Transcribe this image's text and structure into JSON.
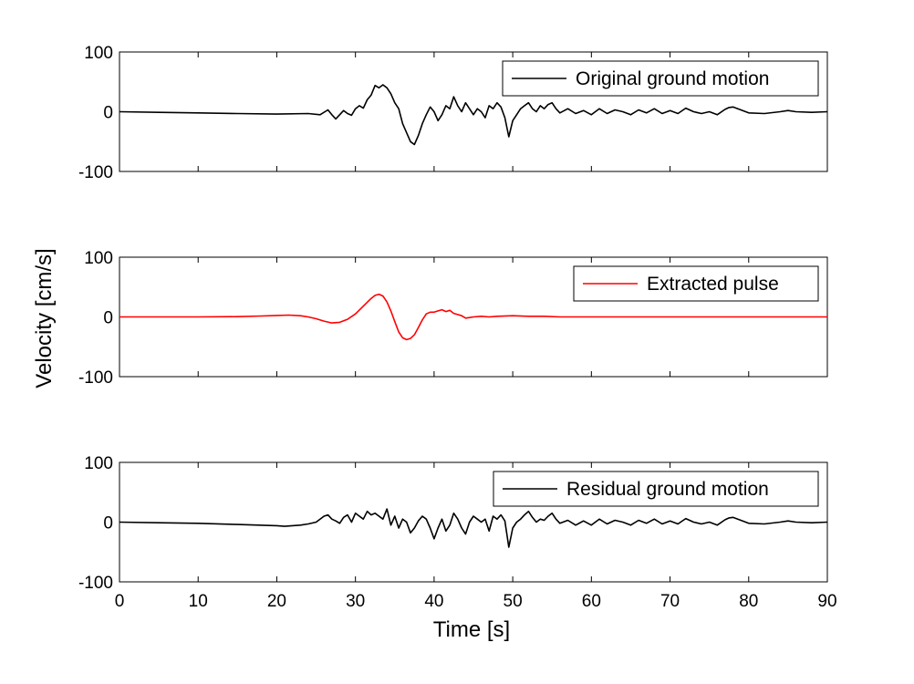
{
  "figure": {
    "ylabel": "Velocity [cm/s]",
    "xlabel": "Time [s]"
  },
  "colors": {
    "original": "#000000",
    "pulse": "#ff0000",
    "residual": "#000000"
  },
  "chart_data": [
    {
      "type": "line",
      "title": "",
      "xlabel": "",
      "ylabel": "",
      "xlim": [
        0,
        90
      ],
      "ylim": [
        -100,
        100
      ],
      "yticks": [
        -100,
        0,
        100
      ],
      "xticks": [
        0,
        10,
        20,
        30,
        40,
        50,
        60,
        70,
        80,
        90
      ],
      "x_tick_labels_shown": false,
      "legend_position": "top-right",
      "grid": false,
      "series": [
        {
          "name": "Original ground motion",
          "color": "#000000",
          "x": [
            0,
            5,
            10,
            15,
            20,
            24,
            25.5,
            26.5,
            27,
            27.5,
            28,
            28.5,
            29,
            29.5,
            30,
            30.5,
            31,
            31.5,
            32,
            32.5,
            33,
            33.5,
            34,
            34.5,
            35,
            35.5,
            36,
            36.5,
            37,
            37.5,
            38,
            38.5,
            39,
            39.5,
            40,
            40.5,
            41,
            41.5,
            42,
            42.5,
            43,
            43.5,
            44,
            44.5,
            45,
            45.5,
            46,
            46.5,
            47,
            47.5,
            48,
            48.5,
            49,
            49.5,
            50,
            50.5,
            51,
            51.5,
            52,
            52.5,
            53,
            53.5,
            54,
            54.5,
            55,
            55.5,
            56,
            57,
            58,
            59,
            60,
            61,
            62,
            63,
            64,
            65,
            66,
            67,
            68,
            69,
            70,
            71,
            72,
            73,
            74,
            75,
            76,
            77,
            77.5,
            78,
            79,
            80,
            82,
            84,
            85,
            86,
            88,
            90
          ],
          "y": [
            0,
            -1,
            -2,
            -3,
            -4,
            -3,
            -5,
            3,
            -5,
            -12,
            -5,
            2,
            -3,
            -6,
            5,
            10,
            6,
            20,
            28,
            44,
            40,
            45,
            40,
            30,
            15,
            5,
            -20,
            -35,
            -50,
            -55,
            -40,
            -20,
            -5,
            8,
            0,
            -15,
            -5,
            10,
            5,
            25,
            10,
            0,
            15,
            5,
            -5,
            5,
            0,
            -10,
            10,
            5,
            15,
            8,
            -10,
            -42,
            -15,
            -5,
            5,
            10,
            15,
            5,
            0,
            10,
            5,
            12,
            15,
            5,
            -2,
            5,
            -3,
            2,
            -5,
            5,
            -3,
            3,
            0,
            -5,
            3,
            -2,
            5,
            -3,
            2,
            -3,
            6,
            0,
            -3,
            0,
            -5,
            4,
            7,
            8,
            3,
            -2,
            -3,
            0,
            2,
            0,
            -1,
            0
          ]
        }
      ]
    },
    {
      "type": "line",
      "title": "",
      "xlabel": "",
      "ylabel": "",
      "xlim": [
        0,
        90
      ],
      "ylim": [
        -100,
        100
      ],
      "yticks": [
        -100,
        0,
        100
      ],
      "xticks": [
        0,
        10,
        20,
        30,
        40,
        50,
        60,
        70,
        80,
        90
      ],
      "x_tick_labels_shown": false,
      "legend_position": "top-right",
      "grid": false,
      "series": [
        {
          "name": "Extracted pulse",
          "color": "#ff0000",
          "x": [
            0,
            10,
            15,
            18,
            20,
            21.5,
            23,
            24,
            25,
            26,
            27,
            28,
            29,
            30,
            31,
            32,
            32.5,
            33,
            33.5,
            34,
            34.5,
            35,
            35.5,
            36,
            36.5,
            37,
            37.5,
            38,
            38.5,
            39,
            39.5,
            40,
            40.5,
            41,
            41.5,
            42,
            42.5,
            43,
            43.5,
            44,
            44.5,
            45,
            46,
            47,
            48,
            50,
            52,
            54,
            56,
            60,
            70,
            80,
            90
          ],
          "y": [
            0,
            0,
            0.5,
            1.5,
            2.5,
            3,
            2,
            0,
            -3,
            -7,
            -10,
            -9,
            -4,
            5,
            18,
            31,
            36,
            38,
            35,
            25,
            10,
            -8,
            -25,
            -35,
            -38,
            -36,
            -30,
            -18,
            -5,
            5,
            8,
            8,
            10,
            12,
            9,
            11,
            6,
            4,
            2,
            -2,
            -1,
            0,
            1,
            0,
            1,
            2,
            1,
            1,
            0,
            0,
            0,
            0,
            0
          ]
        }
      ]
    },
    {
      "type": "line",
      "title": "",
      "xlabel": "Time [s]",
      "ylabel": "",
      "xlim": [
        0,
        90
      ],
      "ylim": [
        -100,
        100
      ],
      "yticks": [
        -100,
        0,
        100
      ],
      "xticks": [
        0,
        10,
        20,
        30,
        40,
        50,
        60,
        70,
        80,
        90
      ],
      "x_tick_labels_shown": true,
      "legend_position": "top-right",
      "grid": false,
      "series": [
        {
          "name": "Residual ground motion",
          "color": "#000000",
          "x": [
            0,
            5,
            10,
            15,
            20,
            21,
            22,
            23,
            24,
            25,
            26,
            26.5,
            27,
            27.5,
            28,
            28.5,
            29,
            29.5,
            30,
            30.5,
            31,
            31.5,
            32,
            32.5,
            33,
            33.5,
            34,
            34.5,
            35,
            35.5,
            36,
            36.5,
            37,
            37.5,
            38,
            38.5,
            39,
            39.5,
            40,
            40.5,
            41,
            41.5,
            42,
            42.5,
            43,
            43.5,
            44,
            44.5,
            45,
            45.5,
            46,
            46.5,
            47,
            47.5,
            48,
            48.5,
            49,
            49.5,
            50,
            50.5,
            51,
            51.5,
            52,
            52.5,
            53,
            53.5,
            54,
            54.5,
            55,
            55.5,
            56,
            57,
            58,
            59,
            60,
            61,
            62,
            63,
            64,
            65,
            66,
            67,
            68,
            69,
            70,
            71,
            72,
            73,
            74,
            75,
            76,
            77,
            77.5,
            78,
            79,
            80,
            82,
            84,
            85,
            86,
            88,
            90
          ],
          "y": [
            0,
            -1,
            -2,
            -4,
            -6,
            -7,
            -6,
            -5,
            -3,
            0,
            10,
            12,
            5,
            2,
            -2,
            8,
            12,
            0,
            15,
            10,
            5,
            18,
            12,
            15,
            10,
            5,
            22,
            -5,
            10,
            -10,
            5,
            0,
            -18,
            -10,
            2,
            10,
            5,
            -10,
            -28,
            -10,
            5,
            -15,
            -5,
            15,
            5,
            -10,
            -20,
            0,
            10,
            5,
            0,
            5,
            -15,
            10,
            5,
            12,
            2,
            -42,
            -10,
            0,
            5,
            12,
            18,
            8,
            0,
            5,
            3,
            10,
            15,
            5,
            -2,
            3,
            -5,
            2,
            -5,
            5,
            -3,
            3,
            0,
            -5,
            3,
            -2,
            5,
            -3,
            2,
            -3,
            6,
            0,
            -3,
            0,
            -5,
            4,
            7,
            8,
            3,
            -2,
            -3,
            0,
            2,
            0,
            -1,
            0
          ]
        }
      ]
    }
  ]
}
